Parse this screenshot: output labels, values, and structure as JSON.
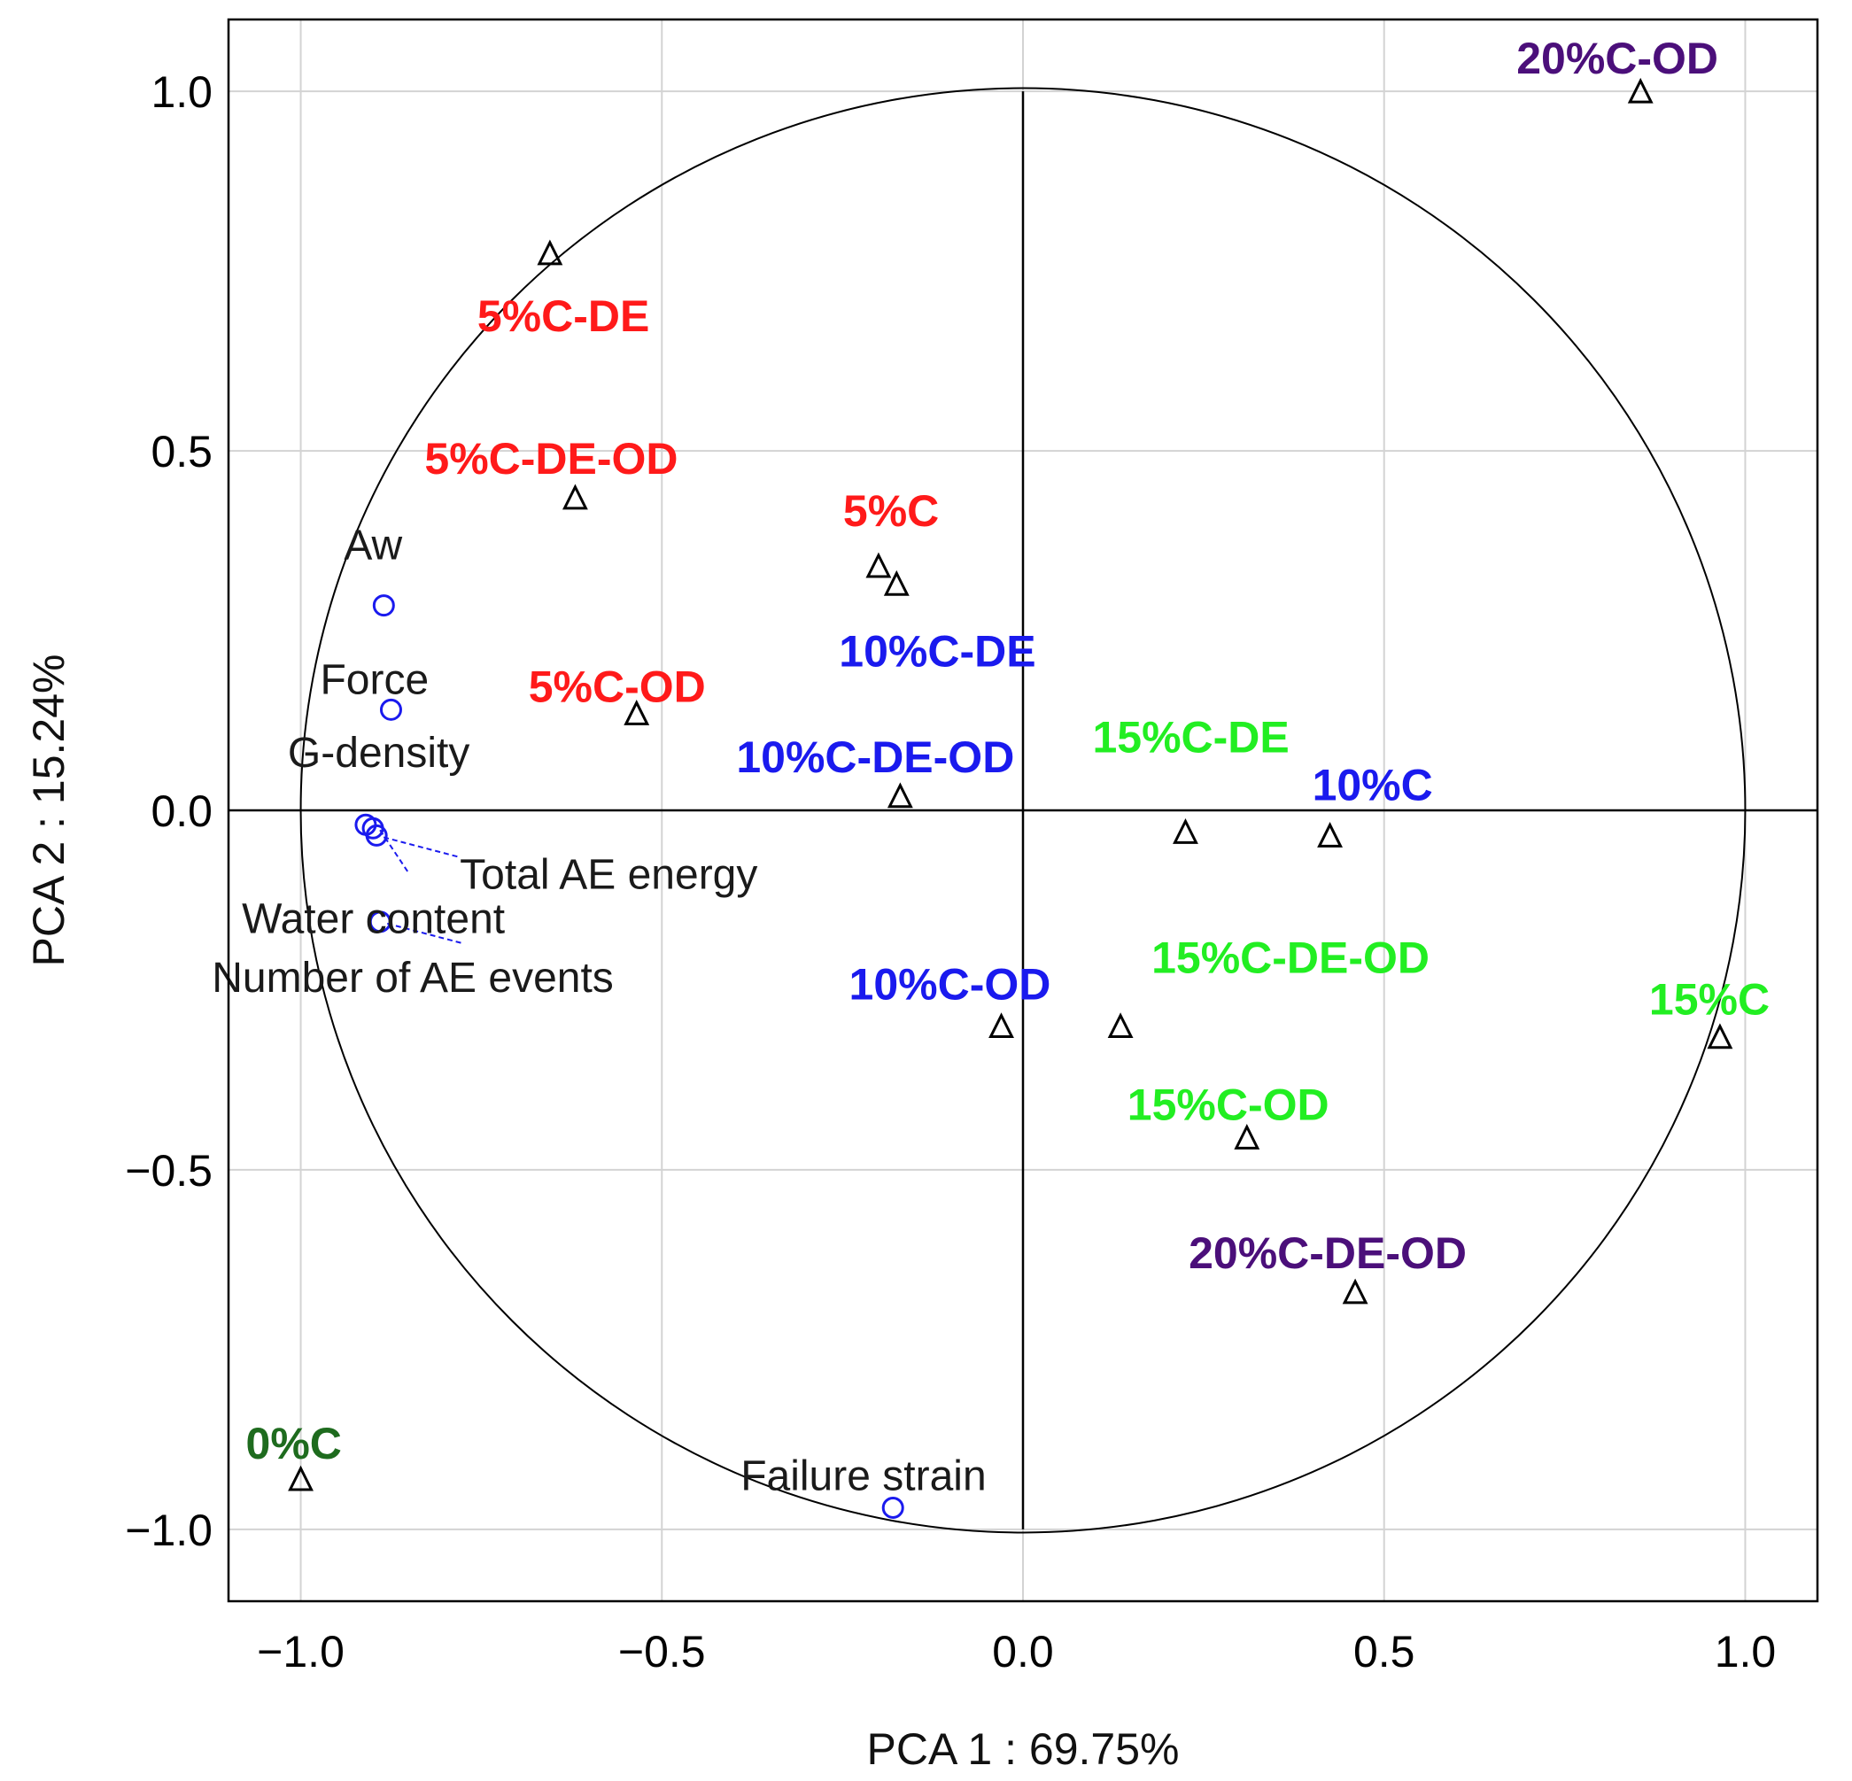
{
  "chart_data": {
    "type": "scatter",
    "title": "",
    "xlabel": "PCA 1 : 69.75%",
    "ylabel": "PCA 2 : 15.24%",
    "xlim": [
      -1.1,
      1.1
    ],
    "ylim": [
      -1.1,
      1.1
    ],
    "xticks": [
      -1.0,
      -0.5,
      0.0,
      0.5,
      1.0
    ],
    "yticks": [
      -1.0,
      -0.5,
      0.0,
      0.5,
      1.0
    ],
    "xtick_labels": [
      "−1.0",
      "−0.5",
      "0.0",
      "0.5",
      "1.0"
    ],
    "ytick_labels": [
      "−1.0",
      "−0.5",
      "0.0",
      "0.5",
      "1.0"
    ],
    "grid": true,
    "unit_circle": true,
    "colors": {
      "red": "#ff1a1a",
      "blue": "#1a1aee",
      "green": "#22ee22",
      "darkgreen": "#1e6b1e",
      "purple": "#4b0f7a",
      "variable": "#1a1aee"
    },
    "variables": [
      {
        "name": "Aw",
        "x": -0.885,
        "y": 0.285
      },
      {
        "name": "Force",
        "x": -0.875,
        "y": 0.14
      },
      {
        "name": "G-density",
        "x": -0.91,
        "y": -0.02
      },
      {
        "name": "Total AE energy",
        "x": -0.895,
        "y": -0.035
      },
      {
        "name": "Water content",
        "x": -0.9,
        "y": -0.025
      },
      {
        "name": "Number of AE events",
        "x": -0.89,
        "y": -0.155
      },
      {
        "name": "Failure strain",
        "x": -0.18,
        "y": -0.97
      }
    ],
    "samples": [
      {
        "name": "20%C-OD",
        "x": 0.855,
        "y": 1.0,
        "color": "purple"
      },
      {
        "name": "5%C-DE",
        "x": -0.655,
        "y": 0.775,
        "color": "red"
      },
      {
        "name": "5%C-DE-OD",
        "x": -0.62,
        "y": 0.435,
        "color": "red"
      },
      {
        "name": "5%C",
        "x": -0.2,
        "y": 0.34,
        "color": "red"
      },
      {
        "name": "10%C-DE",
        "x": -0.175,
        "y": 0.315,
        "color": "blue"
      },
      {
        "name": "5%C-OD",
        "x": -0.535,
        "y": 0.135,
        "color": "red"
      },
      {
        "name": "10%C-DE-OD",
        "x": -0.17,
        "y": 0.02,
        "color": "blue"
      },
      {
        "name": "15%C-DE",
        "x": 0.225,
        "y": -0.03,
        "color": "green"
      },
      {
        "name": "10%C",
        "x": 0.425,
        "y": -0.035,
        "color": "blue"
      },
      {
        "name": "10%C-OD",
        "x": -0.03,
        "y": -0.3,
        "color": "blue"
      },
      {
        "name": "15%C-DE-OD",
        "x": 0.135,
        "y": -0.3,
        "color": "green"
      },
      {
        "name": "15%C",
        "x": 0.965,
        "y": -0.315,
        "color": "green"
      },
      {
        "name": "15%C-OD",
        "x": 0.31,
        "y": -0.455,
        "color": "green"
      },
      {
        "name": "20%C-DE-OD",
        "x": 0.46,
        "y": -0.67,
        "color": "purple"
      },
      {
        "name": "0%C",
        "x": -1.0,
        "y": -0.93,
        "color": "darkgreen"
      }
    ]
  }
}
